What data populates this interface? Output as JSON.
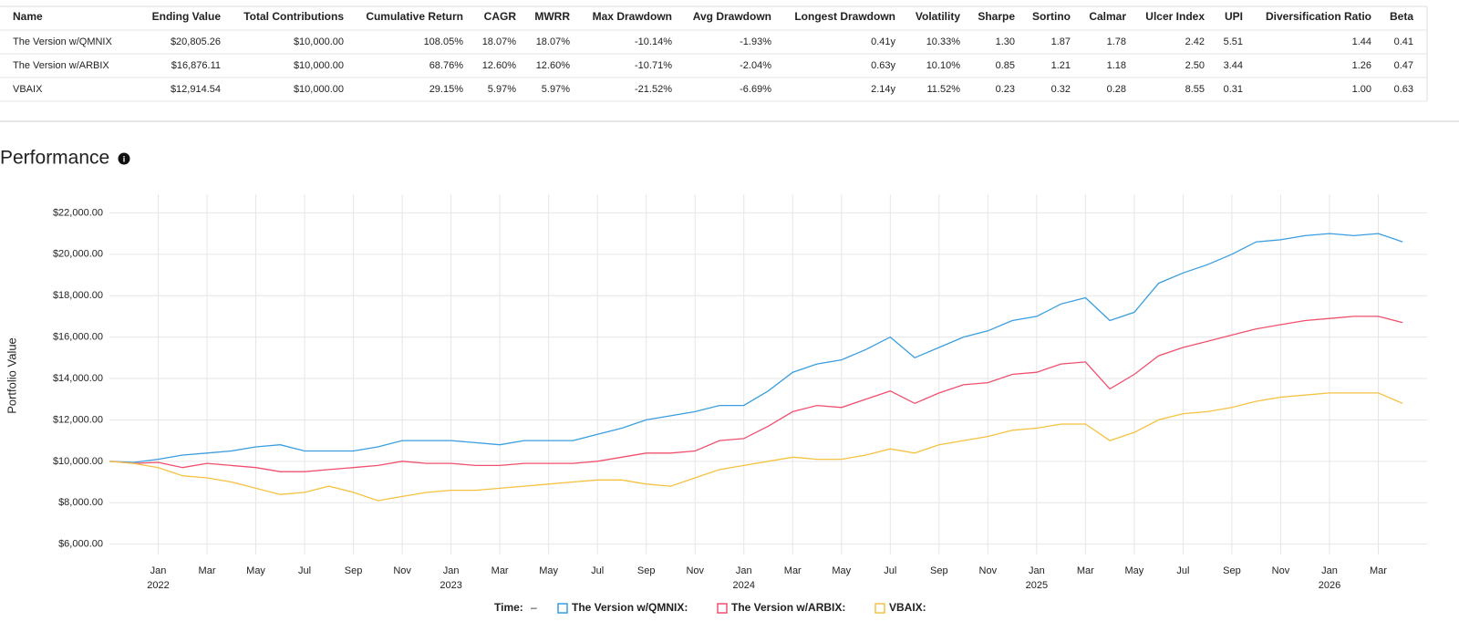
{
  "table": {
    "headers": [
      "Name",
      "Ending Value",
      "Total Contributions",
      "Cumulative Return",
      "CAGR",
      "MWRR",
      "Max Drawdown",
      "Avg Drawdown",
      "Longest Drawdown",
      "Volatility",
      "Sharpe",
      "Sortino",
      "Calmar",
      "Ulcer Index",
      "UPI",
      "Diversification Ratio",
      "Beta"
    ],
    "rows": [
      [
        "The Version w/QMNIX",
        "$20,805.26",
        "$10,000.00",
        "108.05%",
        "18.07%",
        "18.07%",
        "-10.14%",
        "-1.93%",
        "0.41y",
        "10.33%",
        "1.30",
        "1.87",
        "1.78",
        "2.42",
        "5.51",
        "1.44",
        "0.41"
      ],
      [
        "The Version w/ARBIX",
        "$16,876.11",
        "$10,000.00",
        "68.76%",
        "12.60%",
        "12.60%",
        "-10.71%",
        "-2.04%",
        "0.63y",
        "10.10%",
        "0.85",
        "1.21",
        "1.18",
        "2.50",
        "3.44",
        "1.26",
        "0.47"
      ],
      [
        "VBAIX",
        "$12,914.54",
        "$10,000.00",
        "29.15%",
        "5.97%",
        "5.97%",
        "-21.52%",
        "-6.69%",
        "2.14y",
        "11.52%",
        "0.23",
        "0.32",
        "0.28",
        "8.55",
        "0.31",
        "1.00",
        "0.63"
      ]
    ]
  },
  "section_title": "Performance",
  "chart_data": {
    "type": "line",
    "y_label": "Portfolio Value",
    "legend_title": "Time:",
    "legend_dash": "–",
    "grid": true,
    "x": [
      "2021-11",
      "2021-12",
      "2022-01",
      "2022-02",
      "2022-03",
      "2022-04",
      "2022-05",
      "2022-06",
      "2022-07",
      "2022-08",
      "2022-09",
      "2022-10",
      "2022-11",
      "2022-12",
      "2023-01",
      "2023-02",
      "2023-03",
      "2023-04",
      "2023-05",
      "2023-06",
      "2023-07",
      "2023-08",
      "2023-09",
      "2023-10",
      "2023-11",
      "2023-12",
      "2024-01",
      "2024-02",
      "2024-03",
      "2024-04",
      "2024-05",
      "2024-06",
      "2024-07",
      "2024-08",
      "2024-09",
      "2024-10",
      "2024-11",
      "2024-12",
      "2025-01",
      "2025-02",
      "2025-03",
      "2025-04",
      "2025-05",
      "2025-06",
      "2025-07",
      "2025-08",
      "2025-09",
      "2025-10",
      "2025-11",
      "2025-12",
      "2026-01",
      "2026-02",
      "2026-03",
      "2026-04"
    ],
    "xlim": [
      "2021-11",
      "2026-05"
    ],
    "xticks": [
      {
        "value": "2022-01",
        "label": "Jan"
      },
      {
        "value": "2022-03",
        "label": "Mar"
      },
      {
        "value": "2022-05",
        "label": "May"
      },
      {
        "value": "2022-07",
        "label": "Jul"
      },
      {
        "value": "2022-09",
        "label": "Sep"
      },
      {
        "value": "2022-11",
        "label": "Nov"
      },
      {
        "value": "2023-01",
        "label": "Jan"
      },
      {
        "value": "2023-03",
        "label": "Mar"
      },
      {
        "value": "2023-05",
        "label": "May"
      },
      {
        "value": "2023-07",
        "label": "Jul"
      },
      {
        "value": "2023-09",
        "label": "Sep"
      },
      {
        "value": "2023-11",
        "label": "Nov"
      },
      {
        "value": "2024-01",
        "label": "Jan"
      },
      {
        "value": "2024-03",
        "label": "Mar"
      },
      {
        "value": "2024-05",
        "label": "May"
      },
      {
        "value": "2024-07",
        "label": "Jul"
      },
      {
        "value": "2024-09",
        "label": "Sep"
      },
      {
        "value": "2024-11",
        "label": "Nov"
      },
      {
        "value": "2025-01",
        "label": "Jan"
      },
      {
        "value": "2025-03",
        "label": "Mar"
      },
      {
        "value": "2025-05",
        "label": "May"
      },
      {
        "value": "2025-07",
        "label": "Jul"
      },
      {
        "value": "2025-09",
        "label": "Sep"
      },
      {
        "value": "2025-11",
        "label": "Nov"
      },
      {
        "value": "2026-01",
        "label": "Jan"
      },
      {
        "value": "2026-03",
        "label": "Mar"
      }
    ],
    "xyears": [
      {
        "value": "2022-01",
        "label": "2022"
      },
      {
        "value": "2023-01",
        "label": "2023"
      },
      {
        "value": "2024-01",
        "label": "2024"
      },
      {
        "value": "2025-01",
        "label": "2025"
      },
      {
        "value": "2026-01",
        "label": "2026"
      }
    ],
    "ylim": [
      5500,
      22900
    ],
    "yticks": [
      {
        "value": 6000,
        "label": "$6,000.00"
      },
      {
        "value": 8000,
        "label": "$8,000.00"
      },
      {
        "value": 10000,
        "label": "$10,000.00"
      },
      {
        "value": 12000,
        "label": "$12,000.00"
      },
      {
        "value": 14000,
        "label": "$14,000.00"
      },
      {
        "value": 16000,
        "label": "$16,000.00"
      },
      {
        "value": 18000,
        "label": "$18,000.00"
      },
      {
        "value": 20000,
        "label": "$20,000.00"
      },
      {
        "value": 22000,
        "label": "$22,000.00"
      }
    ],
    "series": [
      {
        "name": "The Version w/QMNIX:",
        "color": "#3a9ee0",
        "values": [
          10000,
          9950,
          10100,
          10300,
          10400,
          10500,
          10700,
          10800,
          10500,
          10500,
          10500,
          10700,
          11000,
          11000,
          11000,
          10900,
          10800,
          11000,
          11000,
          11000,
          11300,
          11600,
          12000,
          12200,
          12400,
          12700,
          12700,
          13400,
          14300,
          14700,
          14900,
          15400,
          16000,
          15000,
          15500,
          16000,
          16300,
          16800,
          17000,
          17600,
          17900,
          16800,
          17200,
          18600,
          19100,
          19500,
          20000,
          20600,
          20700,
          20900,
          21000,
          20900,
          21000,
          20600
        ]
      },
      {
        "name": "The Version w/ARBIX:",
        "color": "#f0506e",
        "values": [
          10000,
          9900,
          9950,
          9700,
          9900,
          9800,
          9700,
          9500,
          9500,
          9600,
          9700,
          9800,
          10000,
          9900,
          9900,
          9800,
          9800,
          9900,
          9900,
          9900,
          10000,
          10200,
          10400,
          10400,
          10500,
          11000,
          11100,
          11700,
          12400,
          12700,
          12600,
          13000,
          13400,
          12800,
          13300,
          13700,
          13800,
          14200,
          14300,
          14700,
          14800,
          13500,
          14200,
          15100,
          15500,
          15800,
          16100,
          16400,
          16600,
          16800,
          16900,
          17000,
          17000,
          16700
        ]
      },
      {
        "name": "VBAIX:",
        "color": "#f5c242",
        "values": [
          10000,
          9900,
          9700,
          9300,
          9200,
          9000,
          8700,
          8400,
          8500,
          8800,
          8500,
          8100,
          8300,
          8500,
          8600,
          8600,
          8700,
          8800,
          8900,
          9000,
          9100,
          9100,
          8900,
          8800,
          9200,
          9600,
          9800,
          10000,
          10200,
          10100,
          10100,
          10300,
          10600,
          10400,
          10800,
          11000,
          11200,
          11500,
          11600,
          11800,
          11800,
          11000,
          11400,
          12000,
          12300,
          12400,
          12600,
          12900,
          13100,
          13200,
          13300,
          13300,
          13300,
          12800
        ]
      }
    ]
  }
}
